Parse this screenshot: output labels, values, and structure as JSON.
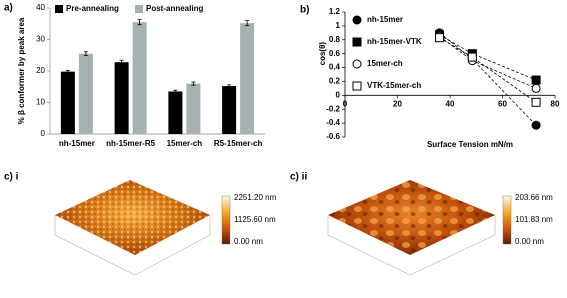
{
  "chart_data": [
    {
      "type": "bar",
      "label": "a)",
      "ylabel": "% β conformer by peak area",
      "categories": [
        "nh-15mer",
        "nh-15mer-R5",
        "15mer-ch",
        "R5-15mer-ch"
      ],
      "series": [
        {
          "name": "Pre-annealing",
          "color": "#000000",
          "values": [
            19.8,
            22.8,
            13.5,
            15.2
          ],
          "errors": [
            0.4,
            0.6,
            0.4,
            0.4
          ]
        },
        {
          "name": "Post-annealing",
          "color": "#a6b1b1",
          "values": [
            25.5,
            35.5,
            16,
            35.2
          ],
          "errors": [
            0.6,
            0.8,
            0.5,
            0.8
          ]
        }
      ],
      "ylim": [
        0,
        40
      ],
      "yticks": [
        0,
        10,
        20,
        30,
        40
      ],
      "legend": "top-left"
    },
    {
      "type": "scatter",
      "label": "b)",
      "xlabel": "Surface Tension mN/m",
      "ylabel": "cos(θ)",
      "series": [
        {
          "name": "nh-15mer",
          "color": "#000000",
          "marker": "circle",
          "filled": true,
          "x": [
            36,
            48.5,
            72.8
          ],
          "values": [
            0.9,
            0.52,
            -0.43
          ]
        },
        {
          "name": "nh-15mer-VTK",
          "color": "#000000",
          "marker": "square",
          "filled": true,
          "x": [
            36,
            48.5,
            72.8
          ],
          "values": [
            0.87,
            0.6,
            0.22
          ]
        },
        {
          "name": "15mer-ch",
          "color": "#000000",
          "marker": "circle",
          "filled": false,
          "x": [
            36,
            48.5,
            72.8
          ],
          "values": [
            0.85,
            0.5,
            0.1
          ]
        },
        {
          "name": "VTK-15mer-ch",
          "color": "#000000",
          "marker": "square",
          "filled": false,
          "x": [
            36,
            48.5,
            72.8
          ],
          "values": [
            0.83,
            0.55,
            -0.1
          ]
        }
      ],
      "xlim": [
        0,
        80
      ],
      "xticks": [
        0,
        20,
        40,
        60,
        80
      ],
      "ylim": [
        -0.6,
        1.2
      ],
      "yticks": [
        -0.6,
        -0.4,
        -0.2,
        0,
        0.2,
        0.4,
        0.6,
        0.8,
        1,
        1.2
      ],
      "legend": "top-left"
    }
  ],
  "afm_images": [
    {
      "label": "c) i",
      "colorbar_labels": [
        "2251.20 nm",
        "1125.60 nm",
        "0.00 nm"
      ]
    },
    {
      "label": "c) ii",
      "colorbar_labels": [
        "203.66 nm",
        "101.83 nm",
        "0.00 nm"
      ]
    }
  ]
}
